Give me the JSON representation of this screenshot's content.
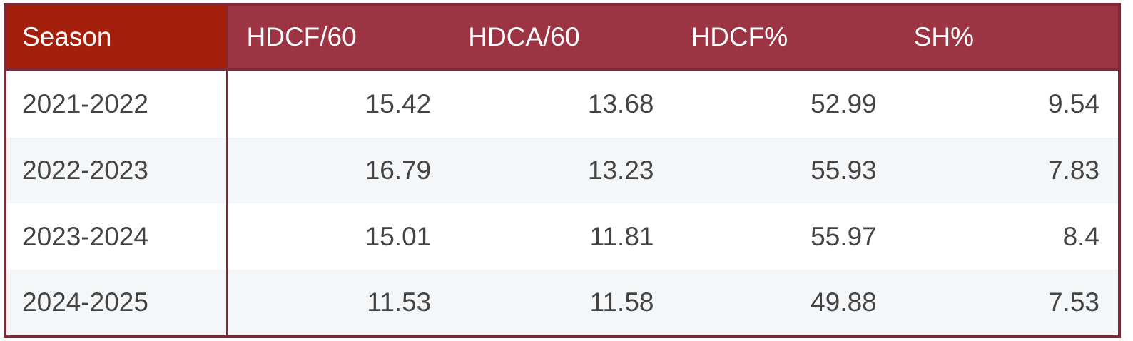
{
  "table": {
    "header": [
      "Season",
      "HDCF/60",
      "HDCA/60",
      "HDCF%",
      "SH%"
    ],
    "rows": [
      [
        "2021-2022",
        15.42,
        13.68,
        52.99,
        9.54
      ],
      [
        "2022-2023",
        16.79,
        13.23,
        55.93,
        7.83
      ],
      [
        "2023-2024",
        15.01,
        11.81,
        55.97,
        8.4
      ],
      [
        "2024-2025",
        11.53,
        11.58,
        49.88,
        7.53
      ]
    ]
  }
}
